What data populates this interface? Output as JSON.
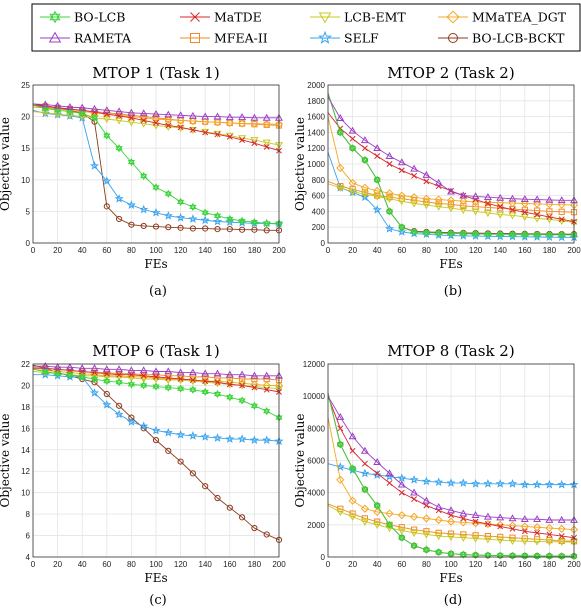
{
  "legend": {
    "entries": [
      {
        "name": "BO-LCB",
        "color": "#3bd43b",
        "marker": "hexstar"
      },
      {
        "name": "MaTDE",
        "color": "#d6282e",
        "marker": "x"
      },
      {
        "name": "LCB-EMT",
        "color": "#c8c81e",
        "marker": "triangle-down"
      },
      {
        "name": "MMaTEA_DGT",
        "color": "#f5a623",
        "marker": "diamond"
      },
      {
        "name": "RAMETA",
        "color": "#9b3fc7",
        "marker": "triangle-up"
      },
      {
        "name": "MFEA-II",
        "color": "#f08a24",
        "marker": "square"
      },
      {
        "name": "SELF",
        "color": "#3aa3ee",
        "marker": "star"
      },
      {
        "name": "BO-LCB-BCKT",
        "color": "#8b3a1c",
        "marker": "circle"
      }
    ]
  },
  "chart_data": [
    {
      "type": "line",
      "title": "MTOP 1 (Task 1)",
      "xlabel": "FEs",
      "ylabel": "Objective value",
      "caption": "(a)",
      "xlim": [
        0,
        200
      ],
      "ylim": [
        0,
        25
      ],
      "xticks": [
        0,
        20,
        40,
        60,
        80,
        100,
        120,
        140,
        160,
        180,
        200
      ],
      "yticks": [
        0,
        5,
        10,
        15,
        20,
        25
      ],
      "grid": true,
      "x": [
        0,
        10,
        20,
        30,
        40,
        50,
        60,
        70,
        80,
        90,
        100,
        110,
        120,
        130,
        140,
        150,
        160,
        170,
        180,
        190,
        200
      ],
      "series": [
        {
          "name": "BO-LCB",
          "values": [
            21.8,
            21.3,
            21.0,
            20.8,
            20.5,
            19.8,
            17.0,
            15.0,
            12.8,
            10.6,
            8.8,
            7.8,
            6.5,
            5.7,
            4.8,
            4.3,
            3.8,
            3.5,
            3.3,
            3.1,
            3.1
          ]
        },
        {
          "name": "MaTDE",
          "values": [
            21.8,
            21.6,
            21.4,
            21.2,
            21.0,
            20.7,
            20.4,
            20.1,
            19.8,
            19.4,
            19.0,
            18.6,
            18.3,
            17.9,
            17.5,
            17.2,
            16.8,
            16.3,
            15.8,
            15.2,
            14.6
          ]
        },
        {
          "name": "LCB-EMT",
          "values": [
            20.8,
            20.6,
            20.4,
            20.2,
            20.0,
            19.8,
            19.6,
            19.4,
            19.1,
            18.9,
            18.6,
            18.4,
            18.2,
            17.9,
            17.6,
            17.3,
            17.0,
            16.6,
            16.3,
            15.9,
            15.5
          ]
        },
        {
          "name": "MMaTEA_DGT",
          "values": [
            21.5,
            21.4,
            21.2,
            21.0,
            20.8,
            20.6,
            20.4,
            20.2,
            20.0,
            19.8,
            19.6,
            19.5,
            19.4,
            19.3,
            19.2,
            19.1,
            19.0,
            18.9,
            18.9,
            18.8,
            18.8
          ]
        },
        {
          "name": "RAMETA",
          "values": [
            22.0,
            21.9,
            21.7,
            21.5,
            21.4,
            21.2,
            21.0,
            20.8,
            20.6,
            20.5,
            20.4,
            20.3,
            20.2,
            20.1,
            20.0,
            20.0,
            19.9,
            19.9,
            19.8,
            19.8,
            19.8
          ]
        },
        {
          "name": "MFEA-II",
          "values": [
            21.8,
            21.6,
            21.4,
            21.2,
            21.0,
            20.8,
            20.6,
            20.4,
            20.2,
            20.0,
            19.8,
            19.6,
            19.4,
            19.3,
            19.2,
            19.1,
            19.0,
            18.9,
            18.8,
            18.7,
            18.6
          ]
        },
        {
          "name": "SELF",
          "values": [
            21.0,
            20.5,
            20.3,
            20.1,
            19.8,
            12.2,
            9.8,
            7.0,
            6.0,
            5.3,
            4.8,
            4.3,
            4.0,
            3.8,
            3.6,
            3.4,
            3.3,
            3.2,
            3.1,
            3.1,
            3.0
          ]
        },
        {
          "name": "BO-LCB-BCKT",
          "values": [
            22.0,
            21.7,
            21.4,
            21.0,
            20.5,
            19.2,
            5.8,
            3.8,
            2.9,
            2.7,
            2.6,
            2.5,
            2.4,
            2.3,
            2.3,
            2.2,
            2.2,
            2.1,
            2.1,
            2.0,
            2.0
          ]
        }
      ]
    },
    {
      "type": "line",
      "title": "MTOP 2 (Task 2)",
      "xlabel": "FEs",
      "ylabel": "Objective value",
      "caption": "(b)",
      "xlim": [
        0,
        200
      ],
      "ylim": [
        0,
        2000
      ],
      "xticks": [
        0,
        20,
        40,
        60,
        80,
        100,
        120,
        140,
        160,
        180,
        200
      ],
      "yticks": [
        0,
        200,
        400,
        600,
        800,
        1000,
        1200,
        1400,
        1600,
        1800,
        2000
      ],
      "grid": true,
      "x": [
        0,
        10,
        20,
        30,
        40,
        50,
        60,
        70,
        80,
        90,
        100,
        110,
        120,
        130,
        140,
        150,
        160,
        170,
        180,
        190,
        200
      ],
      "series": [
        {
          "name": "BO-LCB",
          "values": [
            1900,
            1400,
            1200,
            1050,
            800,
            400,
            200,
            140,
            130,
            125,
            120,
            118,
            115,
            112,
            110,
            108,
            106,
            105,
            104,
            103,
            102
          ]
        },
        {
          "name": "MaTDE",
          "values": [
            1650,
            1450,
            1320,
            1200,
            1100,
            1000,
            920,
            850,
            780,
            720,
            660,
            600,
            550,
            500,
            460,
            420,
            390,
            360,
            330,
            300,
            270
          ]
        },
        {
          "name": "LCB-EMT",
          "values": [
            750,
            700,
            650,
            620,
            590,
            560,
            530,
            500,
            480,
            460,
            440,
            420,
            400,
            380,
            360,
            350,
            330,
            310,
            300,
            280,
            260
          ]
        },
        {
          "name": "MMaTEA_DGT",
          "values": [
            1600,
            950,
            760,
            700,
            660,
            630,
            600,
            580,
            560,
            550,
            540,
            530,
            520,
            515,
            510,
            505,
            500,
            495,
            490,
            485,
            480
          ]
        },
        {
          "name": "RAMETA",
          "values": [
            1850,
            1580,
            1420,
            1300,
            1200,
            1100,
            1020,
            940,
            860,
            760,
            650,
            600,
            590,
            580,
            570,
            560,
            555,
            550,
            545,
            540,
            540
          ]
        },
        {
          "name": "MFEA-II",
          "values": [
            780,
            720,
            680,
            640,
            600,
            580,
            560,
            540,
            520,
            500,
            490,
            470,
            460,
            450,
            440,
            430,
            420,
            410,
            400,
            395,
            390
          ]
        },
        {
          "name": "SELF",
          "values": [
            1150,
            700,
            640,
            580,
            420,
            180,
            140,
            120,
            110,
            100,
            95,
            90,
            88,
            85,
            82,
            80,
            78,
            76,
            74,
            72,
            70
          ]
        },
        {
          "name": "BO-LCB-BCKT",
          "values": [
            1900,
            1400,
            1200,
            1050,
            800,
            400,
            200,
            150,
            140,
            135,
            130,
            128,
            125,
            122,
            120,
            118,
            116,
            115,
            114,
            113,
            112
          ]
        }
      ]
    },
    {
      "type": "line",
      "title": "MTOP 6 (Task 1)",
      "xlabel": "FEs",
      "ylabel": "Objective value",
      "caption": "(c)",
      "xlim": [
        0,
        200
      ],
      "ylim": [
        4,
        22
      ],
      "xticks": [
        0,
        20,
        40,
        60,
        80,
        100,
        120,
        140,
        160,
        180,
        200
      ],
      "yticks": [
        4,
        6,
        8,
        10,
        12,
        14,
        16,
        18,
        20,
        22
      ],
      "grid": true,
      "x": [
        0,
        10,
        20,
        30,
        40,
        50,
        60,
        70,
        80,
        90,
        100,
        110,
        120,
        130,
        140,
        150,
        160,
        170,
        180,
        190,
        200
      ],
      "series": [
        {
          "name": "BO-LCB",
          "values": [
            21.5,
            21.3,
            21.1,
            21.0,
            20.8,
            20.6,
            20.4,
            20.3,
            20.1,
            20.0,
            19.9,
            19.8,
            19.7,
            19.6,
            19.4,
            19.2,
            18.9,
            18.6,
            18.1,
            17.6,
            17.0
          ]
        },
        {
          "name": "MaTDE",
          "values": [
            21.6,
            21.6,
            21.5,
            21.4,
            21.3,
            21.2,
            21.1,
            21.0,
            21.0,
            20.9,
            20.8,
            20.7,
            20.6,
            20.5,
            20.4,
            20.3,
            20.1,
            20.0,
            19.8,
            19.6,
            19.4
          ]
        },
        {
          "name": "LCB-EMT",
          "values": [
            21.3,
            21.2,
            21.1,
            21.0,
            20.9,
            20.9,
            20.8,
            20.8,
            20.7,
            20.6,
            20.6,
            20.5,
            20.5,
            20.4,
            20.3,
            20.2,
            20.1,
            20.0,
            19.9,
            19.8,
            19.7
          ]
        },
        {
          "name": "MMaTEA_DGT",
          "values": [
            21.5,
            21.4,
            21.3,
            21.2,
            21.1,
            21.0,
            20.9,
            20.9,
            20.8,
            20.8,
            20.7,
            20.6,
            20.6,
            20.5,
            20.4,
            20.4,
            20.3,
            20.2,
            20.1,
            20.0,
            20.0
          ]
        },
        {
          "name": "RAMETA",
          "values": [
            21.8,
            21.8,
            21.7,
            21.7,
            21.6,
            21.6,
            21.5,
            21.5,
            21.4,
            21.4,
            21.3,
            21.3,
            21.2,
            21.2,
            21.1,
            21.1,
            21.0,
            21.0,
            20.9,
            20.9,
            20.9
          ]
        },
        {
          "name": "MFEA-II",
          "values": [
            21.7,
            21.6,
            21.5,
            21.4,
            21.3,
            21.2,
            21.2,
            21.1,
            21.1,
            21.0,
            21.0,
            20.9,
            20.9,
            20.8,
            20.8,
            20.7,
            20.7,
            20.6,
            20.6,
            20.6,
            20.5
          ]
        },
        {
          "name": "SELF",
          "values": [
            21.0,
            21.0,
            20.9,
            20.8,
            20.8,
            19.3,
            18.2,
            17.3,
            16.6,
            16.2,
            15.8,
            15.6,
            15.4,
            15.3,
            15.2,
            15.1,
            15.0,
            15.0,
            14.9,
            14.9,
            14.8
          ]
        },
        {
          "name": "BO-LCB-BCKT",
          "values": [
            21.9,
            21.6,
            21.2,
            20.9,
            20.6,
            20.3,
            19.2,
            18.1,
            17.0,
            16.0,
            14.9,
            13.9,
            12.9,
            11.8,
            10.6,
            9.5,
            8.6,
            7.7,
            6.7,
            6.1,
            5.6
          ]
        }
      ]
    },
    {
      "type": "line",
      "title": "MTOP 8 (Task 2)",
      "xlabel": "FEs",
      "ylabel": "Objective value",
      "caption": "(d)",
      "xlim": [
        0,
        200
      ],
      "ylim": [
        0,
        12000
      ],
      "xticks": [
        0,
        20,
        40,
        60,
        80,
        100,
        120,
        140,
        160,
        180,
        200
      ],
      "yticks": [
        0,
        2000,
        4000,
        6000,
        8000,
        10000,
        12000
      ],
      "grid": true,
      "x": [
        0,
        10,
        20,
        30,
        40,
        50,
        60,
        70,
        80,
        90,
        100,
        110,
        120,
        130,
        140,
        150,
        160,
        170,
        180,
        190,
        200
      ],
      "series": [
        {
          "name": "BO-LCB",
          "values": [
            10200,
            7000,
            5500,
            4200,
            3200,
            2000,
            1200,
            700,
            450,
            300,
            200,
            150,
            120,
            100,
            90,
            80,
            70,
            60,
            55,
            50,
            50
          ]
        },
        {
          "name": "MaTDE",
          "values": [
            10000,
            8000,
            6600,
            5800,
            5200,
            4600,
            4000,
            3600,
            3200,
            2900,
            2600,
            2400,
            2200,
            2050,
            1900,
            1750,
            1600,
            1500,
            1400,
            1300,
            1200
          ]
        },
        {
          "name": "LCB-EMT",
          "values": [
            3200,
            2800,
            2500,
            2200,
            2000,
            1800,
            1650,
            1500,
            1400,
            1300,
            1250,
            1200,
            1150,
            1100,
            1050,
            1000,
            980,
            960,
            950,
            940,
            930
          ]
        },
        {
          "name": "MMaTEA_DGT",
          "values": [
            8700,
            4800,
            3500,
            3000,
            2800,
            2700,
            2600,
            2500,
            2400,
            2300,
            2200,
            2150,
            2100,
            2050,
            2000,
            1950,
            1900,
            1850,
            1800,
            1750,
            1700
          ]
        },
        {
          "name": "RAMETA",
          "values": [
            10000,
            8700,
            7500,
            6600,
            5900,
            5200,
            4500,
            4000,
            3500,
            3100,
            2900,
            2700,
            2600,
            2500,
            2450,
            2400,
            2350,
            2350,
            2300,
            2300,
            2300
          ]
        },
        {
          "name": "MFEA-II",
          "values": [
            3300,
            3000,
            2700,
            2400,
            2200,
            2000,
            1850,
            1700,
            1600,
            1500,
            1450,
            1400,
            1350,
            1300,
            1250,
            1200,
            1150,
            1100,
            1050,
            1000,
            980
          ]
        },
        {
          "name": "SELF",
          "values": [
            5800,
            5600,
            5400,
            5200,
            5100,
            5000,
            4900,
            4800,
            4700,
            4650,
            4600,
            4600,
            4550,
            4550,
            4550,
            4550,
            4500,
            4500,
            4500,
            4500,
            4500
          ]
        },
        {
          "name": "BO-LCB-BCKT",
          "values": [
            10200,
            7000,
            5500,
            4200,
            3200,
            2000,
            1200,
            700,
            450,
            300,
            200,
            150,
            120,
            100,
            90,
            80,
            70,
            60,
            55,
            50,
            50
          ]
        }
      ]
    }
  ]
}
